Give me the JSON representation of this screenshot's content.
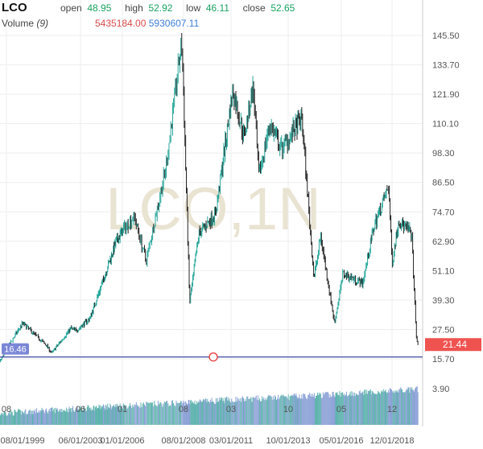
{
  "header": {
    "symbol": "LCO",
    "open_label": "open",
    "open": "48.95",
    "high_label": "high",
    "high": "52.92",
    "low_label": "low",
    "low": "46.11",
    "close_label": "close",
    "close": "52.65",
    "volume_label": "Volume",
    "volume_period": "(9)",
    "volume_value": "5435184.00",
    "volume_ma": "5930607.11"
  },
  "watermark": "LCO,1N",
  "colors": {
    "up": "#26a69a",
    "down": "#222222",
    "vol_up": "#5fb3ae",
    "vol_down": "#8aa0d6",
    "guide_line": "#3f4aa8",
    "last_price": "#ef5350",
    "left_badge": "#7b86d6",
    "grid": "#eeeeee",
    "text": "#555555"
  },
  "chart_data": {
    "type": "candlestick",
    "price_axis": {
      "min": 15.7,
      "max": 145.5,
      "ticks": [
        "145.50",
        "133.70",
        "121.90",
        "110.10",
        "98.30",
        "86.50",
        "74.70",
        "62.90",
        "51.10",
        "39.30",
        "27.50",
        "15.70"
      ]
    },
    "volume_axis_tick": "3.90",
    "x_axis": {
      "upper_ticks": [
        {
          "label": "08",
          "date": "1999-08-01"
        },
        {
          "label": "06",
          "date": "2003-06-01"
        },
        {
          "label": "01",
          "date": "2006-01-01"
        },
        {
          "label": "08",
          "date": "2008-08-01"
        },
        {
          "label": "03",
          "date": "2011-03-01"
        },
        {
          "label": "10",
          "date": "2013-10-01"
        },
        {
          "label": "05",
          "date": "2016-05-01"
        },
        {
          "label": "12",
          "date": "2018-12-01"
        }
      ],
      "lower_ticks": [
        "08/01/1999",
        "06/01/2003",
        "01/01/2006",
        "08/01/2008",
        "03/01/2011",
        "10/01/2013",
        "05/01/2016",
        "12/01/2018"
      ]
    },
    "last_price": "21.44",
    "left_marker": "16.46",
    "horizontal_line_value": 16.46,
    "series_anchors": [
      {
        "date": "1997-08-01",
        "close": 19.0
      },
      {
        "date": "1998-06-01",
        "close": 21.0
      },
      {
        "date": "1998-12-01",
        "close": 17.0
      },
      {
        "date": "1999-03-01",
        "close": 13.5
      },
      {
        "date": "1999-08-01",
        "close": 19.5
      },
      {
        "date": "2000-06-01",
        "close": 30.0
      },
      {
        "date": "2001-09-01",
        "close": 21.0
      },
      {
        "date": "2001-12-01",
        "close": 18.0
      },
      {
        "date": "2002-12-01",
        "close": 28.0
      },
      {
        "date": "2003-03-01",
        "close": 27.0
      },
      {
        "date": "2004-01-01",
        "close": 32.0
      },
      {
        "date": "2004-10-01",
        "close": 46.0
      },
      {
        "date": "2005-08-01",
        "close": 62.0
      },
      {
        "date": "2006-07-01",
        "close": 73.0
      },
      {
        "date": "2007-01-01",
        "close": 55.0
      },
      {
        "date": "2007-11-01",
        "close": 92.0
      },
      {
        "date": "2008-07-01",
        "close": 143.0
      },
      {
        "date": "2008-12-01",
        "close": 38.0
      },
      {
        "date": "2009-06-01",
        "close": 66.0
      },
      {
        "date": "2010-05-01",
        "close": 74.0
      },
      {
        "date": "2011-04-01",
        "close": 123.0
      },
      {
        "date": "2011-10-01",
        "close": 105.0
      },
      {
        "date": "2012-03-01",
        "close": 125.0
      },
      {
        "date": "2012-06-01",
        "close": 89.0
      },
      {
        "date": "2012-12-01",
        "close": 110.0
      },
      {
        "date": "2013-06-01",
        "close": 100.0
      },
      {
        "date": "2014-06-01",
        "close": 112.0
      },
      {
        "date": "2015-01-01",
        "close": 48.0
      },
      {
        "date": "2015-05-01",
        "close": 65.0
      },
      {
        "date": "2016-01-01",
        "close": 30.0
      },
      {
        "date": "2016-06-01",
        "close": 50.0
      },
      {
        "date": "2017-06-01",
        "close": 46.0
      },
      {
        "date": "2018-01-01",
        "close": 69.0
      },
      {
        "date": "2018-10-01",
        "close": 85.0
      },
      {
        "date": "2018-12-01",
        "close": 54.0
      },
      {
        "date": "2019-04-01",
        "close": 71.0
      },
      {
        "date": "2019-12-01",
        "close": 66.0
      },
      {
        "date": "2020-03-01",
        "close": 23.0
      },
      {
        "date": "2020-04-01",
        "close": 21.44
      }
    ]
  }
}
